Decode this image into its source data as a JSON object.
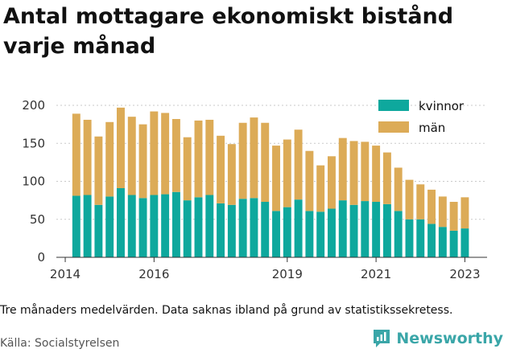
{
  "title": "Antal mottagare ekonomiskt bistånd varje månad",
  "caption": "Tre månaders medelvärden. Data saknas ibland på grund av statistikssekretess.",
  "source": "Källa: Socialstyrelsen",
  "brand": {
    "name": "Newsworthy",
    "icon": "newsworthy-logo-icon",
    "color": "#3aa6a8"
  },
  "chart_data": {
    "type": "bar",
    "stacked": true,
    "ylim": [
      0,
      200
    ],
    "yticks": [
      0,
      50,
      100,
      150,
      200
    ],
    "xticks": [
      {
        "label": "2014",
        "at": 2014.0
      },
      {
        "label": "2016",
        "at": 2016.0
      },
      {
        "label": "2019",
        "at": 2019.0
      },
      {
        "label": "2021",
        "at": 2021.0
      },
      {
        "label": "2023",
        "at": 2023.0
      }
    ],
    "xrange": [
      2013.8,
      2023.5
    ],
    "grid": true,
    "legend": "top-right",
    "x": [
      2014.25,
      2014.5,
      2014.75,
      2015.0,
      2015.25,
      2015.5,
      2015.75,
      2016.0,
      2016.25,
      2016.5,
      2016.75,
      2017.0,
      2017.25,
      2017.5,
      2017.75,
      2018.0,
      2018.25,
      2018.5,
      2018.75,
      2019.0,
      2019.25,
      2019.5,
      2019.75,
      2020.0,
      2020.25,
      2020.5,
      2020.75,
      2021.0,
      2021.25,
      2021.5,
      2021.75,
      2022.0,
      2022.25,
      2022.5,
      2022.75,
      2023.0
    ],
    "series": [
      {
        "name": "kvinnor",
        "color": "#0ea89d",
        "values": [
          81,
          82,
          69,
          80,
          91,
          82,
          78,
          82,
          83,
          86,
          75,
          79,
          82,
          71,
          69,
          77,
          78,
          73,
          61,
          66,
          76,
          61,
          60,
          64,
          75,
          69,
          74,
          73,
          70,
          61,
          50,
          50,
          44,
          40,
          35,
          38
        ]
      },
      {
        "name": "män",
        "color": "#dcab57",
        "values": [
          108,
          99,
          90,
          98,
          106,
          103,
          97,
          110,
          107,
          96,
          83,
          101,
          99,
          89,
          80,
          100,
          106,
          104,
          86,
          89,
          92,
          79,
          61,
          69,
          82,
          84,
          78,
          74,
          68,
          57,
          52,
          46,
          45,
          40,
          38,
          41
        ]
      }
    ]
  }
}
